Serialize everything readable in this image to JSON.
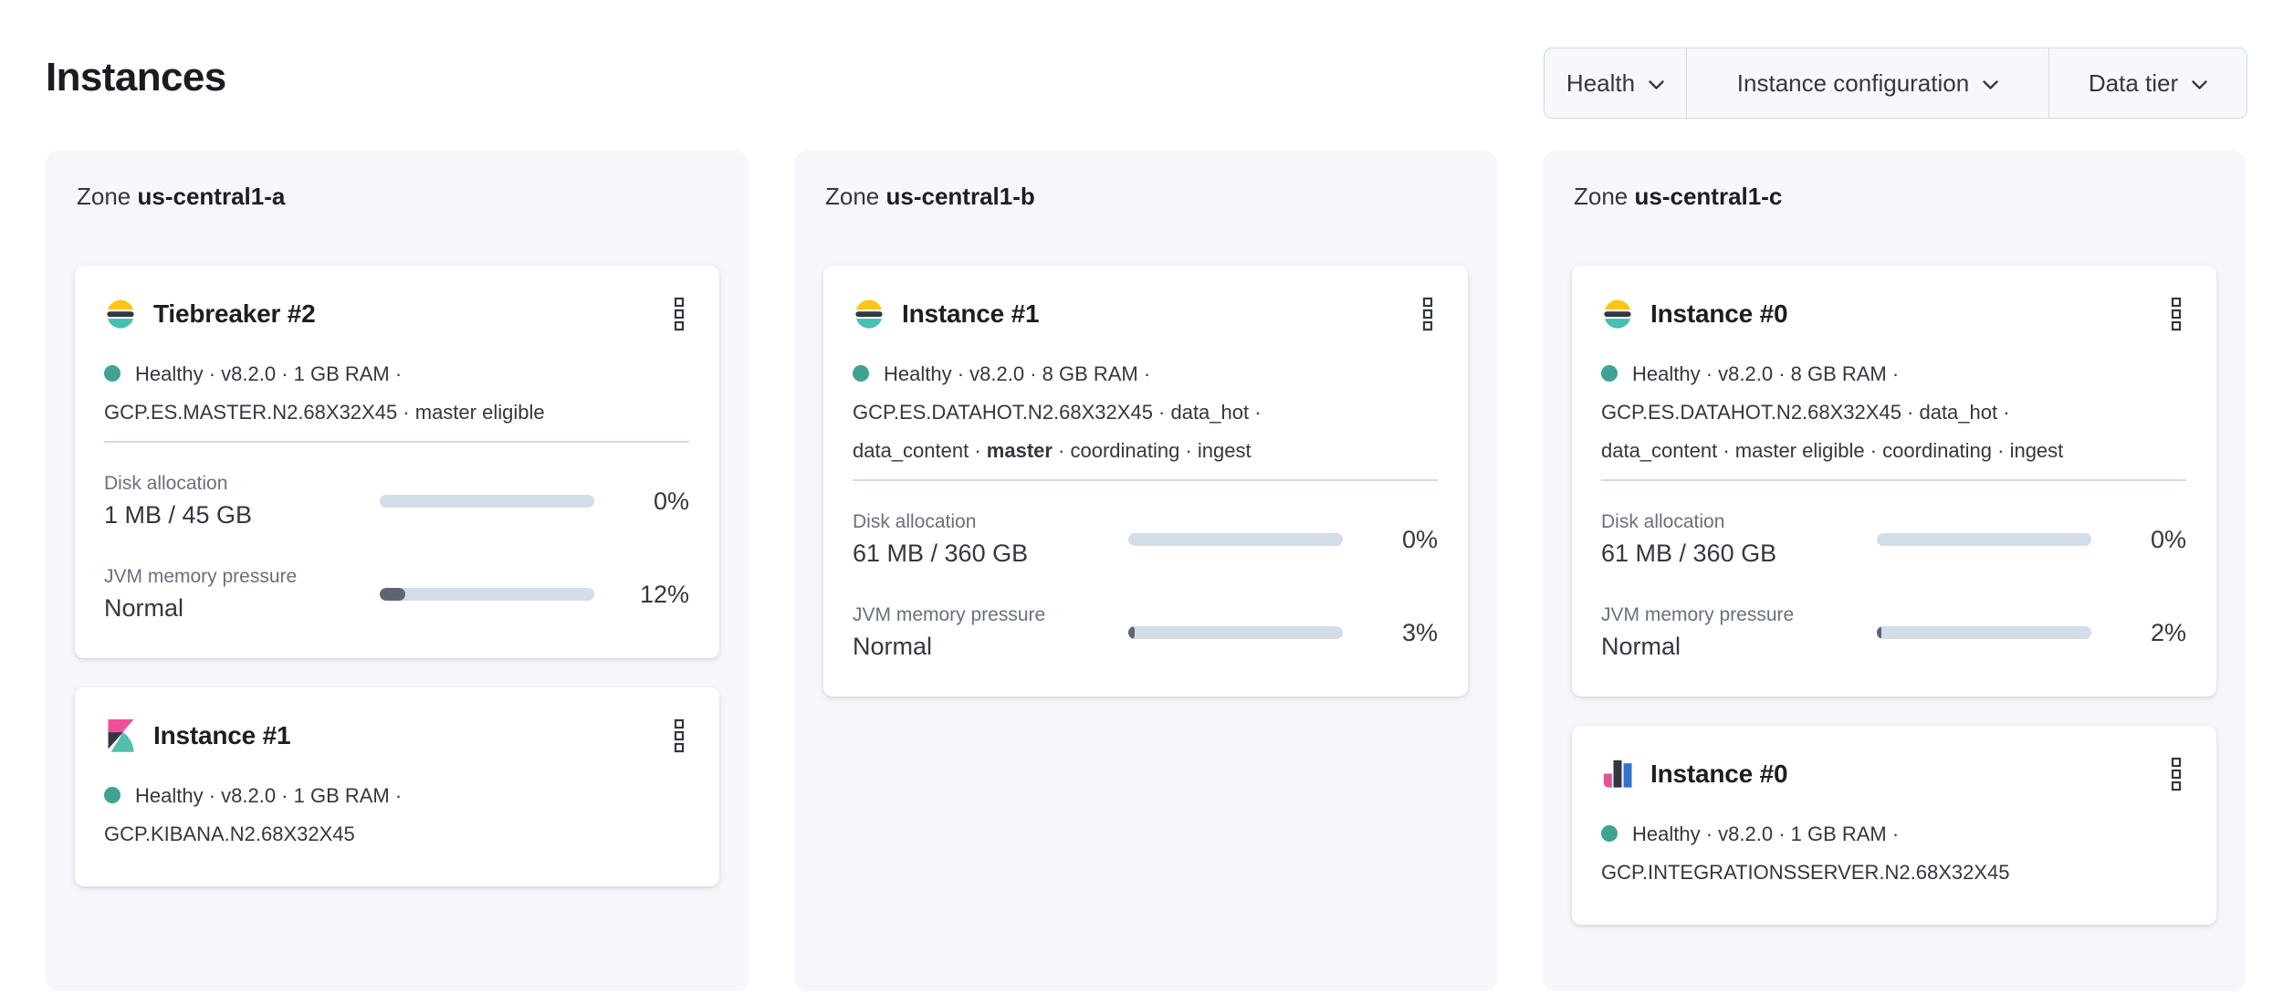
{
  "page": {
    "title": "Instances"
  },
  "filters": {
    "items": [
      {
        "label": "Health"
      },
      {
        "label": "Instance configuration"
      },
      {
        "label": "Data tier"
      }
    ]
  },
  "colors": {
    "panel_bg": "#f6f7fb",
    "filter_bg": "#f7f8fc",
    "border": "#d3dae6",
    "text_subdued": "#69707d",
    "bar_track": "#d3dce9",
    "bar_fill": "#5e6673",
    "health_dot": "#3fa294",
    "es_yellow": "#fec514",
    "es_teal": "#45c0b1",
    "dark_shade": "#343741",
    "kibana_pink": "#f04e98",
    "kibana_teal": "#51c0ad",
    "integrations_pink": "#e0549a",
    "integrations_blue": "#3273cd"
  },
  "zones": [
    {
      "label_prefix": "Zone",
      "name": "us-central1-a",
      "cards": [
        {
          "icon": "elasticsearch",
          "title": "Tiebreaker #2",
          "status_lines": [
            [
              {
                "text": "Healthy · v8.2.0 · 1 GB RAM ·"
              }
            ],
            [
              {
                "text": "GCP.ES.MASTER.N2.68X32X45 · master eligible"
              }
            ]
          ],
          "metrics": [
            {
              "label": "Disk allocation",
              "value": "1 MB / 45 GB",
              "percent": "0%",
              "fill_pct": 0
            },
            {
              "label": "JVM memory pressure",
              "value": "Normal",
              "percent": "12%",
              "fill_pct": 12
            }
          ]
        },
        {
          "icon": "kibana",
          "title": "Instance #1",
          "status_lines": [
            [
              {
                "text": "Healthy · v8.2.0 · 1 GB RAM ·"
              }
            ],
            [
              {
                "text": "GCP.KIBANA.N2.68X32X45"
              }
            ]
          ],
          "metrics": []
        }
      ]
    },
    {
      "label_prefix": "Zone",
      "name": "us-central1-b",
      "cards": [
        {
          "icon": "elasticsearch",
          "title": "Instance #1",
          "status_lines": [
            [
              {
                "text": "Healthy · v8.2.0 · 8 GB RAM ·"
              }
            ],
            [
              {
                "text": "GCP.ES.DATAHOT.N2.68X32X45 · data_hot ·"
              }
            ],
            [
              {
                "text": "data_content · "
              },
              {
                "text": "master",
                "bold": true
              },
              {
                "text": " · coordinating · ingest"
              }
            ]
          ],
          "metrics": [
            {
              "label": "Disk allocation",
              "value": "61 MB / 360 GB",
              "percent": "0%",
              "fill_pct": 0
            },
            {
              "label": "JVM memory pressure",
              "value": "Normal",
              "percent": "3%",
              "fill_pct": 3
            }
          ]
        }
      ]
    },
    {
      "label_prefix": "Zone",
      "name": "us-central1-c",
      "cards": [
        {
          "icon": "elasticsearch",
          "title": "Instance #0",
          "status_lines": [
            [
              {
                "text": "Healthy · v8.2.0 · 8 GB RAM ·"
              }
            ],
            [
              {
                "text": "GCP.ES.DATAHOT.N2.68X32X45 · data_hot ·"
              }
            ],
            [
              {
                "text": "data_content · master eligible · coordinating · ingest"
              }
            ]
          ],
          "metrics": [
            {
              "label": "Disk allocation",
              "value": "61 MB / 360 GB",
              "percent": "0%",
              "fill_pct": 0
            },
            {
              "label": "JVM memory pressure",
              "value": "Normal",
              "percent": "2%",
              "fill_pct": 2
            }
          ]
        },
        {
          "icon": "integrations",
          "title": "Instance #0",
          "status_lines": [
            [
              {
                "text": "Healthy · v8.2.0 · 1 GB RAM ·"
              }
            ],
            [
              {
                "text": "GCP.INTEGRATIONSSERVER.N2.68X32X45"
              }
            ]
          ],
          "metrics": []
        }
      ]
    }
  ]
}
